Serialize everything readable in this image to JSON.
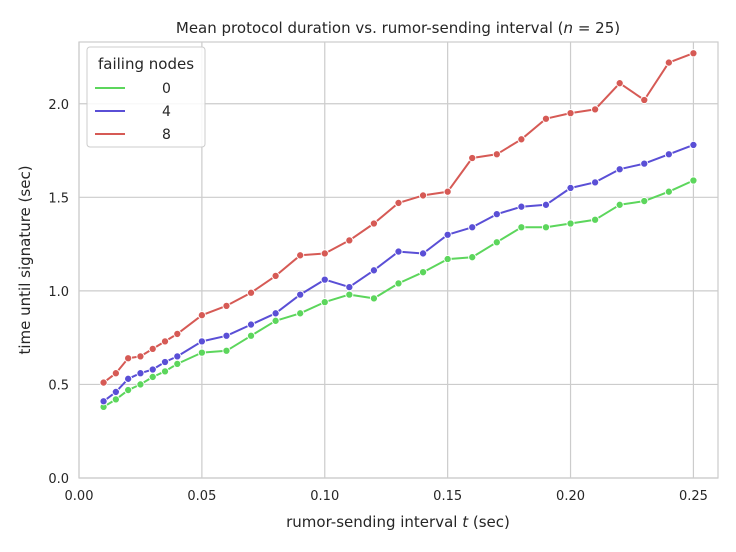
{
  "chart_data": {
    "type": "line",
    "title": "Mean protocol duration vs. rumor-sending interval (n = 25)",
    "xlabel": "rumor-sending interval t (sec)",
    "ylabel": "time until signature (sec)",
    "xlim": [
      0.0,
      0.26
    ],
    "ylim": [
      0.0,
      2.33
    ],
    "xticks": [
      0.0,
      0.05,
      0.1,
      0.15,
      0.2,
      0.25
    ],
    "xtick_labels": [
      "0.00",
      "0.05",
      "0.10",
      "0.15",
      "0.20",
      "0.25"
    ],
    "yticks": [
      0.0,
      0.5,
      1.0,
      1.5,
      2.0
    ],
    "ytick_labels": [
      "0.0",
      "0.5",
      "1.0",
      "1.5",
      "2.0"
    ],
    "grid": true,
    "legend": {
      "title": "failing nodes",
      "placement": "top-left"
    },
    "x": [
      0.01,
      0.015,
      0.02,
      0.025,
      0.03,
      0.035,
      0.04,
      0.05,
      0.06,
      0.07,
      0.08,
      0.09,
      0.1,
      0.11,
      0.12,
      0.13,
      0.14,
      0.15,
      0.16,
      0.17,
      0.18,
      0.19,
      0.2,
      0.21,
      0.22,
      0.23,
      0.24,
      0.25
    ],
    "series": [
      {
        "name": "0",
        "color": "#5cd65c",
        "values": [
          0.38,
          0.42,
          0.47,
          0.5,
          0.54,
          0.57,
          0.61,
          0.67,
          0.68,
          0.76,
          0.84,
          0.88,
          0.94,
          0.98,
          0.96,
          1.04,
          1.1,
          1.17,
          1.18,
          1.26,
          1.34,
          1.34,
          1.36,
          1.38,
          1.46,
          1.48,
          1.53,
          1.59
        ]
      },
      {
        "name": "4",
        "color": "#5a4fd6",
        "values": [
          0.41,
          0.46,
          0.53,
          0.56,
          0.58,
          0.62,
          0.65,
          0.73,
          0.76,
          0.82,
          0.88,
          0.98,
          1.06,
          1.02,
          1.11,
          1.21,
          1.2,
          1.3,
          1.34,
          1.41,
          1.45,
          1.46,
          1.55,
          1.58,
          1.65,
          1.68,
          1.73,
          1.78
        ]
      },
      {
        "name": "8",
        "color": "#d65a55",
        "values": [
          0.51,
          0.56,
          0.64,
          0.65,
          0.69,
          0.73,
          0.77,
          0.87,
          0.92,
          0.99,
          1.08,
          1.19,
          1.2,
          1.27,
          1.36,
          1.47,
          1.51,
          1.53,
          1.71,
          1.73,
          1.81,
          1.92,
          1.95,
          1.97,
          2.11,
          2.02,
          2.22,
          2.27
        ]
      }
    ]
  }
}
